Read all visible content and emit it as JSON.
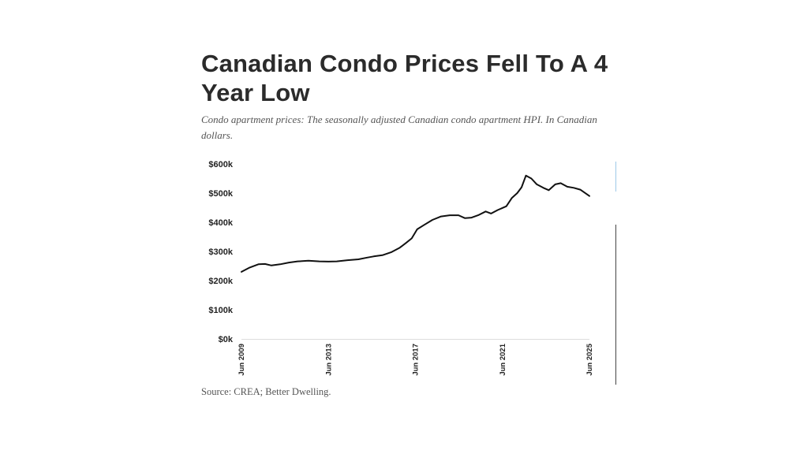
{
  "chart_data": {
    "type": "line",
    "title": "Canadian Condo Prices Fell To A 4 Year Low",
    "subtitle": "Condo apartment prices: The seasonally adjusted Canadian condo apartment HPI. In Canadian dollars.",
    "source": "Source: CREA; Better Dwelling.",
    "xlabel": "",
    "ylabel": "",
    "ylim": [
      0,
      600000
    ],
    "y_ticks": [
      {
        "value": 0,
        "label": "$0k"
      },
      {
        "value": 100000,
        "label": "$100k"
      },
      {
        "value": 200000,
        "label": "$200k"
      },
      {
        "value": 300000,
        "label": "$300k"
      },
      {
        "value": 400000,
        "label": "$400k"
      },
      {
        "value": 500000,
        "label": "$500k"
      },
      {
        "value": 600000,
        "label": "$600k"
      }
    ],
    "x_ticks": [
      {
        "value": 2009.42,
        "label": "Jun 2009"
      },
      {
        "value": 2013.42,
        "label": "Jun 2013"
      },
      {
        "value": 2017.42,
        "label": "Jun 2017"
      },
      {
        "value": 2021.42,
        "label": "Jun 2021"
      },
      {
        "value": 2025.42,
        "label": "Jun 2025"
      }
    ],
    "grid": false,
    "series": [
      {
        "color": "#111111",
        "points": [
          [
            2009.42,
            230000
          ],
          [
            2009.8,
            245000
          ],
          [
            2010.2,
            256000
          ],
          [
            2010.5,
            257000
          ],
          [
            2010.8,
            252000
          ],
          [
            2011.2,
            256000
          ],
          [
            2011.6,
            262000
          ],
          [
            2012.0,
            266000
          ],
          [
            2012.5,
            268000
          ],
          [
            2013.0,
            266000
          ],
          [
            2013.42,
            265000
          ],
          [
            2013.8,
            266000
          ],
          [
            2014.3,
            270000
          ],
          [
            2014.8,
            273000
          ],
          [
            2015.2,
            279000
          ],
          [
            2015.5,
            283000
          ],
          [
            2015.9,
            287000
          ],
          [
            2016.3,
            297000
          ],
          [
            2016.7,
            313000
          ],
          [
            2017.0,
            330000
          ],
          [
            2017.25,
            345000
          ],
          [
            2017.5,
            376000
          ],
          [
            2017.8,
            390000
          ],
          [
            2018.2,
            408000
          ],
          [
            2018.6,
            420000
          ],
          [
            2019.0,
            424000
          ],
          [
            2019.4,
            424000
          ],
          [
            2019.7,
            414000
          ],
          [
            2020.0,
            416000
          ],
          [
            2020.3,
            424000
          ],
          [
            2020.65,
            437000
          ],
          [
            2020.9,
            430000
          ],
          [
            2021.2,
            442000
          ],
          [
            2021.6,
            455000
          ],
          [
            2021.85,
            483000
          ],
          [
            2022.1,
            500000
          ],
          [
            2022.3,
            520000
          ],
          [
            2022.5,
            560000
          ],
          [
            2022.75,
            550000
          ],
          [
            2023.0,
            530000
          ],
          [
            2023.3,
            518000
          ],
          [
            2023.55,
            510000
          ],
          [
            2023.85,
            530000
          ],
          [
            2024.1,
            534000
          ],
          [
            2024.4,
            522000
          ],
          [
            2024.7,
            518000
          ],
          [
            2025.0,
            512000
          ],
          [
            2025.42,
            490000
          ]
        ]
      }
    ]
  }
}
